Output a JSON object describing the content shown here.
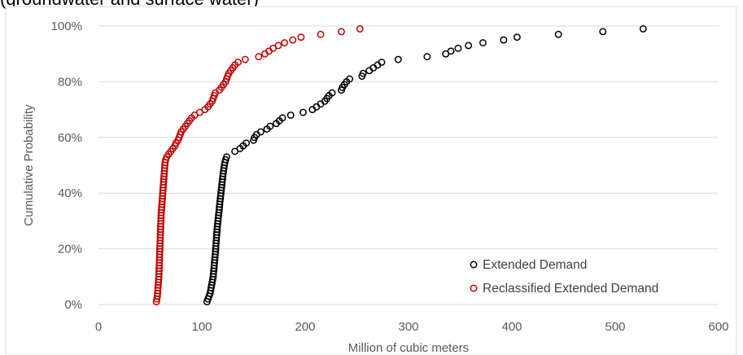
{
  "chart_data": {
    "type": "scatter",
    "title": "(groundwater and surface water)",
    "xlabel": "Million of cubic meters",
    "ylabel": "Cumulative Probability",
    "xlim": [
      0,
      600
    ],
    "ylim": [
      0,
      1
    ],
    "x_ticks": [
      "0",
      "100",
      "200",
      "300",
      "400",
      "500",
      "600"
    ],
    "y_ticks": [
      "0%",
      "20%",
      "40%",
      "60%",
      "80%",
      "100%"
    ],
    "grid": "horizontal",
    "legend_position": "bottom-right",
    "colors": {
      "Extended Demand": "#000000",
      "Reclassified Extended Demand": "#c00000"
    },
    "series": [
      {
        "name": "Extended Demand",
        "points": [
          [
            105,
            0.01
          ],
          [
            106,
            0.02
          ],
          [
            107,
            0.03
          ],
          [
            108,
            0.04
          ],
          [
            108.5,
            0.05
          ],
          [
            109,
            0.06
          ],
          [
            109.5,
            0.07
          ],
          [
            110,
            0.08
          ],
          [
            110.5,
            0.09
          ],
          [
            111,
            0.1
          ],
          [
            111.2,
            0.11
          ],
          [
            111.5,
            0.12
          ],
          [
            111.8,
            0.13
          ],
          [
            112,
            0.14
          ],
          [
            112.2,
            0.15
          ],
          [
            112.5,
            0.16
          ],
          [
            112.7,
            0.17
          ],
          [
            113,
            0.18
          ],
          [
            113.2,
            0.19
          ],
          [
            113.4,
            0.2
          ],
          [
            113.6,
            0.21
          ],
          [
            113.8,
            0.22
          ],
          [
            114,
            0.23
          ],
          [
            114.2,
            0.24
          ],
          [
            114.4,
            0.25
          ],
          [
            114.6,
            0.26
          ],
          [
            114.8,
            0.27
          ],
          [
            115,
            0.28
          ],
          [
            115.3,
            0.29
          ],
          [
            115.6,
            0.3
          ],
          [
            115.9,
            0.31
          ],
          [
            116.2,
            0.32
          ],
          [
            116.5,
            0.33
          ],
          [
            116.8,
            0.34
          ],
          [
            117,
            0.35
          ],
          [
            117.3,
            0.36
          ],
          [
            117.6,
            0.37
          ],
          [
            117.9,
            0.38
          ],
          [
            118.2,
            0.39
          ],
          [
            118.5,
            0.4
          ],
          [
            118.8,
            0.41
          ],
          [
            119.1,
            0.42
          ],
          [
            119.4,
            0.43
          ],
          [
            119.7,
            0.44
          ],
          [
            120,
            0.45
          ],
          [
            120.3,
            0.46
          ],
          [
            120.6,
            0.47
          ],
          [
            121,
            0.48
          ],
          [
            121.4,
            0.49
          ],
          [
            121.8,
            0.5
          ],
          [
            122.3,
            0.51
          ],
          [
            123,
            0.52
          ],
          [
            124,
            0.53
          ],
          [
            132,
            0.55
          ],
          [
            137,
            0.56
          ],
          [
            140,
            0.57
          ],
          [
            143,
            0.58
          ],
          [
            150,
            0.59
          ],
          [
            151,
            0.6
          ],
          [
            153,
            0.61
          ],
          [
            157,
            0.62
          ],
          [
            163,
            0.63
          ],
          [
            166,
            0.64
          ],
          [
            172,
            0.65
          ],
          [
            175,
            0.66
          ],
          [
            178,
            0.67
          ],
          [
            186,
            0.68
          ],
          [
            198,
            0.69
          ],
          [
            207,
            0.7
          ],
          [
            211,
            0.71
          ],
          [
            215,
            0.72
          ],
          [
            219,
            0.73
          ],
          [
            221,
            0.74
          ],
          [
            223,
            0.75
          ],
          [
            226,
            0.76
          ],
          [
            235,
            0.77
          ],
          [
            236,
            0.78
          ],
          [
            238,
            0.79
          ],
          [
            240,
            0.8
          ],
          [
            243,
            0.81
          ],
          [
            255,
            0.82
          ],
          [
            256,
            0.83
          ],
          [
            262,
            0.84
          ],
          [
            266,
            0.85
          ],
          [
            270,
            0.86
          ],
          [
            274,
            0.87
          ],
          [
            290,
            0.88
          ],
          [
            318,
            0.89
          ],
          [
            336,
            0.9
          ],
          [
            341,
            0.91
          ],
          [
            348,
            0.92
          ],
          [
            358,
            0.93
          ],
          [
            372,
            0.94
          ],
          [
            392,
            0.95
          ],
          [
            405,
            0.96
          ],
          [
            445,
            0.97
          ],
          [
            488,
            0.98
          ],
          [
            527,
            0.99
          ]
        ]
      },
      {
        "name": "Reclassified Extended Demand",
        "points": [
          [
            56,
            0.01
          ],
          [
            56.5,
            0.02
          ],
          [
            57,
            0.03
          ],
          [
            57.2,
            0.04
          ],
          [
            57.4,
            0.05
          ],
          [
            57.6,
            0.06
          ],
          [
            57.8,
            0.07
          ],
          [
            58,
            0.08
          ],
          [
            58.2,
            0.09
          ],
          [
            58.4,
            0.1
          ],
          [
            58.5,
            0.11
          ],
          [
            58.6,
            0.12
          ],
          [
            58.7,
            0.13
          ],
          [
            58.8,
            0.14
          ],
          [
            58.9,
            0.15
          ],
          [
            59,
            0.16
          ],
          [
            59.1,
            0.17
          ],
          [
            59.2,
            0.18
          ],
          [
            59.3,
            0.19
          ],
          [
            59.4,
            0.2
          ],
          [
            59.5,
            0.21
          ],
          [
            59.6,
            0.22
          ],
          [
            59.7,
            0.23
          ],
          [
            59.8,
            0.24
          ],
          [
            59.9,
            0.25
          ],
          [
            60,
            0.26
          ],
          [
            60.1,
            0.27
          ],
          [
            60.2,
            0.28
          ],
          [
            60.3,
            0.29
          ],
          [
            60.4,
            0.3
          ],
          [
            60.5,
            0.31
          ],
          [
            60.6,
            0.32
          ],
          [
            60.8,
            0.33
          ],
          [
            61,
            0.34
          ],
          [
            61.2,
            0.35
          ],
          [
            61.4,
            0.36
          ],
          [
            61.6,
            0.37
          ],
          [
            61.8,
            0.38
          ],
          [
            62,
            0.39
          ],
          [
            62.2,
            0.4
          ],
          [
            62.4,
            0.41
          ],
          [
            62.6,
            0.42
          ],
          [
            62.8,
            0.43
          ],
          [
            63,
            0.44
          ],
          [
            63.2,
            0.45
          ],
          [
            63.4,
            0.46
          ],
          [
            63.6,
            0.47
          ],
          [
            63.8,
            0.48
          ],
          [
            64,
            0.49
          ],
          [
            64.2,
            0.5
          ],
          [
            64.5,
            0.51
          ],
          [
            65,
            0.52
          ],
          [
            66,
            0.53
          ],
          [
            68,
            0.54
          ],
          [
            70,
            0.55
          ],
          [
            72,
            0.56
          ],
          [
            74,
            0.57
          ],
          [
            75,
            0.58
          ],
          [
            77,
            0.59
          ],
          [
            78,
            0.6
          ],
          [
            79,
            0.61
          ],
          [
            80,
            0.62
          ],
          [
            82,
            0.63
          ],
          [
            84,
            0.64
          ],
          [
            86,
            0.65
          ],
          [
            88,
            0.66
          ],
          [
            90,
            0.67
          ],
          [
            93,
            0.68
          ],
          [
            98,
            0.69
          ],
          [
            103,
            0.7
          ],
          [
            106,
            0.71
          ],
          [
            108,
            0.72
          ],
          [
            110,
            0.73
          ],
          [
            111,
            0.74
          ],
          [
            112,
            0.75
          ],
          [
            113,
            0.76
          ],
          [
            117,
            0.77
          ],
          [
            119,
            0.78
          ],
          [
            121,
            0.79
          ],
          [
            123,
            0.8
          ],
          [
            124,
            0.81
          ],
          [
            125,
            0.82
          ],
          [
            126,
            0.83
          ],
          [
            128,
            0.84
          ],
          [
            130,
            0.85
          ],
          [
            132,
            0.86
          ],
          [
            135,
            0.87
          ],
          [
            142,
            0.88
          ],
          [
            155,
            0.89
          ],
          [
            161,
            0.9
          ],
          [
            165,
            0.91
          ],
          [
            169,
            0.92
          ],
          [
            174,
            0.93
          ],
          [
            180,
            0.94
          ],
          [
            188,
            0.95
          ],
          [
            196,
            0.96
          ],
          [
            215,
            0.97
          ],
          [
            235,
            0.98
          ],
          [
            253,
            0.99
          ]
        ]
      }
    ]
  }
}
